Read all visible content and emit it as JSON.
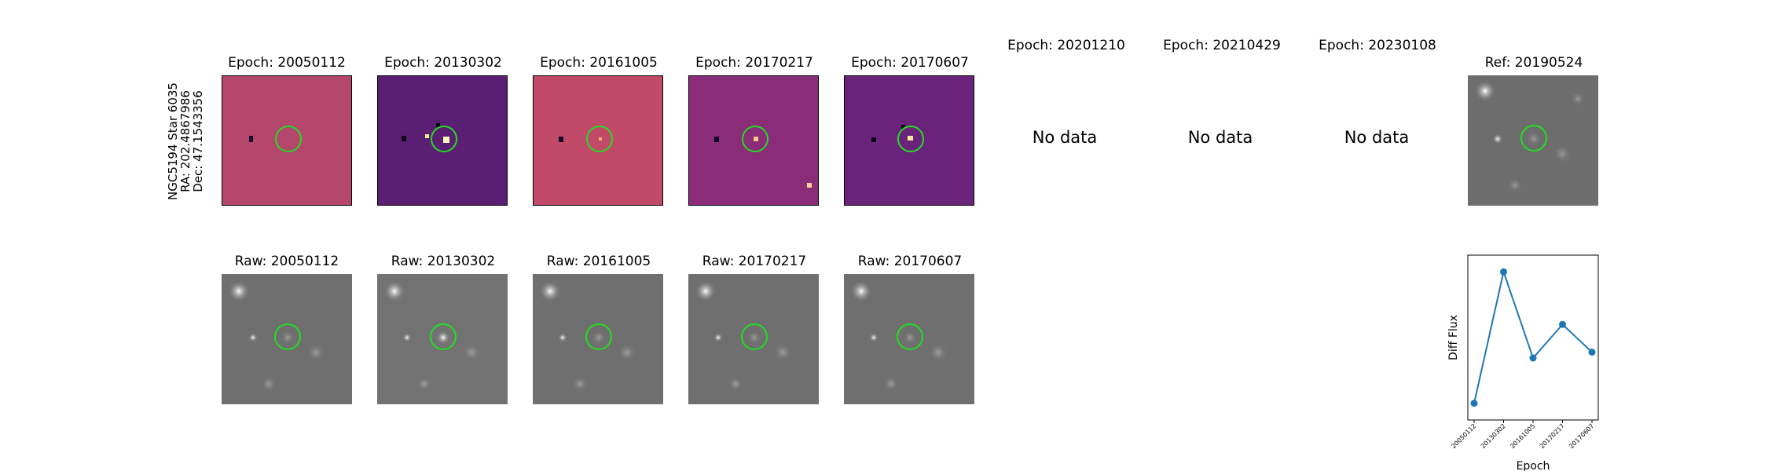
{
  "star": {
    "name": "NGC5194 Star 6035",
    "ra": "RA: 202.4867986",
    "dec": "Dec: 47.1543356"
  },
  "diff_row": [
    {
      "title": "Epoch: 20050112",
      "has_data": true,
      "color": "#b5466c"
    },
    {
      "title": "Epoch: 20130302",
      "has_data": true,
      "color": "#5a1e73"
    },
    {
      "title": "Epoch: 20161005",
      "has_data": true,
      "color": "#c04a68"
    },
    {
      "title": "Epoch: 20170217",
      "has_data": true,
      "color": "#8b2c78"
    },
    {
      "title": "Epoch: 20170607",
      "has_data": true,
      "color": "#6a237a"
    },
    {
      "title": "Epoch: 20201210",
      "has_data": false,
      "nodata": "No data"
    },
    {
      "title": "Epoch: 20210429",
      "has_data": false,
      "nodata": "No data"
    },
    {
      "title": "Epoch: 20230108",
      "has_data": false,
      "nodata": "No data"
    }
  ],
  "reference": {
    "title": "Ref: 20190524"
  },
  "raw_row": [
    {
      "title": "Raw: 20050112"
    },
    {
      "title": "Raw: 20130302"
    },
    {
      "title": "Raw: 20161005"
    },
    {
      "title": "Raw: 20170217"
    },
    {
      "title": "Raw: 20170607"
    }
  ],
  "colors": {
    "circle": "#22dd22",
    "line": "#1f77b4"
  },
  "chart_data": {
    "type": "line",
    "x": [
      "20050112",
      "20130302",
      "20161005",
      "20170217",
      "20170607"
    ],
    "values": [
      0.05,
      0.95,
      0.36,
      0.59,
      0.4
    ],
    "ylim": [
      0,
      1
    ],
    "xlabel": "Epoch",
    "ylabel": "Diff Flux",
    "grid": false,
    "legend": "none"
  }
}
